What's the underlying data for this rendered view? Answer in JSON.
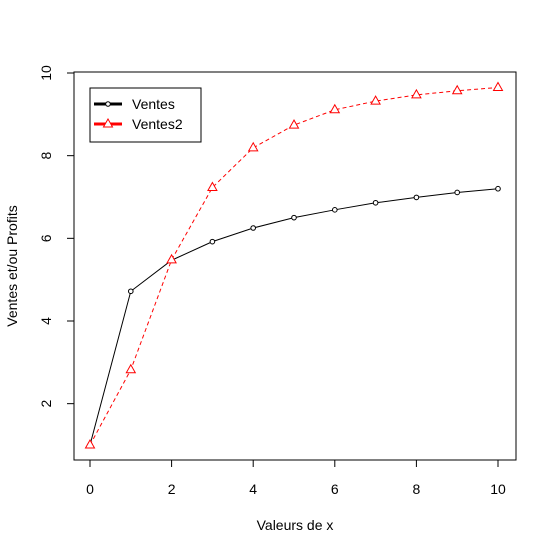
{
  "chart_data": {
    "type": "line",
    "title": "",
    "xlabel": "Valeurs de x",
    "ylabel": "Ventes et/ou Profits",
    "xlim": [
      0,
      10
    ],
    "ylim": [
      1,
      10
    ],
    "x_ticks": [
      0,
      2,
      4,
      6,
      8,
      10
    ],
    "y_ticks": [
      2,
      4,
      6,
      8,
      10
    ],
    "x_tick_labels": [
      "0",
      "2",
      "4",
      "6",
      "8",
      "10"
    ],
    "y_tick_labels": [
      "2",
      "4",
      "6",
      "8",
      "10"
    ],
    "grid": false,
    "legend_position": "top-left",
    "x": [
      0,
      1,
      2,
      3,
      4,
      5,
      6,
      7,
      8,
      9,
      10
    ],
    "series": [
      {
        "name": "Ventes",
        "color": "#000000",
        "line_style": "solid",
        "marker": "circle",
        "values": [
          1.0,
          4.72,
          5.47,
          5.92,
          6.25,
          6.5,
          6.69,
          6.86,
          6.99,
          7.11,
          7.2
        ]
      },
      {
        "name": "Ventes2",
        "color": "#ff0000",
        "line_style": "dashed",
        "marker": "triangle",
        "values": [
          1.0,
          2.82,
          5.48,
          7.23,
          8.19,
          8.74,
          9.11,
          9.32,
          9.47,
          9.57,
          9.65
        ]
      }
    ]
  }
}
